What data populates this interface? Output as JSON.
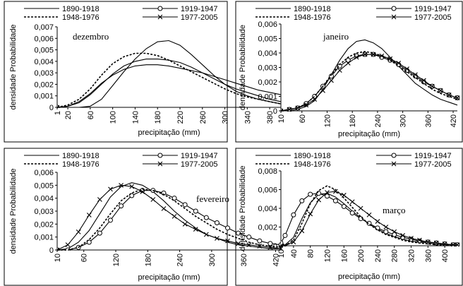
{
  "series_styles": [
    {
      "name": "1890-1918",
      "dash": "",
      "marker": "none"
    },
    {
      "name": "1919-1947",
      "dash": "",
      "marker": "circle"
    },
    {
      "name": "1948-1976",
      "dash": "3,2",
      "marker": "none"
    },
    {
      "name": "1977-2005",
      "dash": "",
      "marker": "x"
    }
  ],
  "chart_data": [
    {
      "type": "line",
      "title": "dezembro",
      "xlabel": "precipitação (mm)",
      "ylabel": "densidade Probabilidade",
      "xlim": [
        1,
        400
      ],
      "ylim": [
        0,
        0.007
      ],
      "xticks": [
        1,
        20,
        60,
        100,
        140,
        180,
        220,
        260,
        300,
        340,
        380
      ],
      "xtick_labels": [
        "1",
        "20",
        "60",
        "100",
        "140",
        "180",
        "220",
        "260",
        "300",
        "340",
        "380"
      ],
      "yticks": [
        0,
        0.001,
        0.002,
        0.003,
        0.004,
        0.005,
        0.006,
        0.007
      ],
      "ytick_labels": [
        "0",
        "0,001",
        "0,002",
        "0,003",
        "0,004",
        "0,005",
        "0,006",
        "0,007"
      ],
      "marker_step": 20,
      "series": [
        {
          "name": "1890-1918",
          "x": [
            1,
            20,
            40,
            60,
            80,
            100,
            120,
            140,
            160,
            180,
            200,
            220,
            240,
            260,
            280,
            300,
            320,
            340,
            360,
            380,
            400
          ],
          "values": [
            0,
            0.0001,
            0.0004,
            0.0011,
            0.002,
            0.0029,
            0.0036,
            0.004,
            0.0042,
            0.0042,
            0.0041,
            0.0039,
            0.0035,
            0.003,
            0.0025,
            0.002,
            0.0016,
            0.0013,
            0.001,
            0.0007,
            0.0005
          ]
        },
        {
          "name": "1919-1947",
          "x": [
            1,
            20,
            40,
            60,
            80,
            100,
            120,
            140,
            160,
            180,
            200,
            220,
            240,
            260,
            280,
            300,
            320,
            340,
            360,
            380,
            400
          ],
          "values": [
            0,
            0.0001,
            0.0005,
            0.0012,
            0.0021,
            0.0028,
            0.0033,
            0.0036,
            0.0037,
            0.0037,
            0.0036,
            0.0034,
            0.0032,
            0.003,
            0.0027,
            0.0024,
            0.0021,
            0.0018,
            0.0015,
            0.0013,
            0.0011
          ]
        },
        {
          "name": "1948-1976",
          "x": [
            1,
            20,
            40,
            60,
            80,
            100,
            120,
            140,
            160,
            180,
            200,
            220,
            240,
            260,
            280,
            300,
            320,
            340,
            360,
            380,
            400
          ],
          "values": [
            0,
            0.0002,
            0.0007,
            0.0016,
            0.0028,
            0.0038,
            0.0044,
            0.0047,
            0.0047,
            0.0045,
            0.0041,
            0.0036,
            0.0031,
            0.0026,
            0.0021,
            0.0016,
            0.0012,
            0.0009,
            0.0007,
            0.0005,
            0.0003
          ]
        },
        {
          "name": "1977-2005",
          "x": [
            1,
            20,
            40,
            60,
            80,
            100,
            120,
            140,
            160,
            180,
            200,
            220,
            240,
            260,
            280,
            300,
            320,
            340,
            360,
            380,
            400
          ],
          "values": [
            0,
            0,
            0,
            0.0001,
            0.0007,
            0.0019,
            0.0031,
            0.0042,
            0.0051,
            0.0057,
            0.0058,
            0.0054,
            0.0046,
            0.0037,
            0.0028,
            0.002,
            0.0014,
            0.001,
            0.0007,
            0.0005,
            0.0003
          ]
        }
      ]
    },
    {
      "type": "line",
      "title": "janeiro",
      "xlabel": "precipitação (mm)",
      "ylabel": "densidade Probabilidade",
      "xlim": [
        10,
        430
      ],
      "ylim": [
        0,
        0.006
      ],
      "xticks": [
        10,
        60,
        120,
        180,
        240,
        300,
        360,
        420
      ],
      "xtick_labels": [
        "10",
        "60",
        "120",
        "180",
        "240",
        "300",
        "360",
        "420"
      ],
      "yticks": [
        0,
        0.001,
        0.002,
        0.003,
        0.004,
        0.005,
        0.006
      ],
      "ytick_labels": [
        "0",
        "0,001",
        "0,002",
        "0,003",
        "0,004",
        "0,005",
        "0,006"
      ],
      "marker_step": 20,
      "series": [
        {
          "name": "1890-1918",
          "x": [
            10,
            30,
            50,
            70,
            90,
            110,
            130,
            150,
            170,
            190,
            210,
            230,
            250,
            270,
            290,
            310,
            330,
            350,
            370,
            390,
            410,
            430
          ],
          "values": [
            0,
            0,
            0.0001,
            0.0003,
            0.0007,
            0.0015,
            0.0025,
            0.0035,
            0.0043,
            0.0048,
            0.0049,
            0.0047,
            0.0043,
            0.0037,
            0.0031,
            0.0025,
            0.0019,
            0.0015,
            0.0011,
            0.0008,
            0.0006,
            0.0004
          ]
        },
        {
          "name": "1919-1947",
          "x": [
            10,
            30,
            50,
            70,
            90,
            110,
            130,
            150,
            170,
            190,
            210,
            230,
            250,
            270,
            290,
            310,
            330,
            350,
            370,
            390,
            410,
            430
          ],
          "values": [
            0,
            0.0001,
            0.0002,
            0.0005,
            0.001,
            0.0017,
            0.0024,
            0.0031,
            0.0035,
            0.0038,
            0.0039,
            0.0039,
            0.0037,
            0.0035,
            0.0032,
            0.0028,
            0.0024,
            0.002,
            0.0017,
            0.0014,
            0.0011,
            0.0009
          ]
        },
        {
          "name": "1948-1976",
          "x": [
            10,
            30,
            50,
            70,
            90,
            110,
            130,
            150,
            170,
            190,
            210,
            230,
            250,
            270,
            290,
            310,
            330,
            350,
            370,
            390,
            410,
            430
          ],
          "values": [
            0,
            0.0001,
            0.0002,
            0.0005,
            0.001,
            0.0017,
            0.0025,
            0.0032,
            0.0037,
            0.004,
            0.0041,
            0.004,
            0.0038,
            0.0035,
            0.0031,
            0.0027,
            0.0023,
            0.0019,
            0.0015,
            0.0012,
            0.001,
            0.0008
          ]
        },
        {
          "name": "1977-2005",
          "x": [
            10,
            30,
            50,
            70,
            90,
            110,
            130,
            150,
            170,
            190,
            210,
            230,
            250,
            270,
            290,
            310,
            330,
            350,
            370,
            390,
            410,
            430
          ],
          "values": [
            0,
            0.0001,
            0.0002,
            0.0004,
            0.0008,
            0.0014,
            0.0021,
            0.0028,
            0.0033,
            0.0037,
            0.0039,
            0.0039,
            0.0038,
            0.0036,
            0.0033,
            0.0029,
            0.0025,
            0.0021,
            0.0017,
            0.0014,
            0.0011,
            0.0009
          ]
        }
      ]
    },
    {
      "type": "line",
      "title": "fevereiro",
      "xlabel": "precipitação (mm)",
      "ylabel": "densidade Probabilidade",
      "xlim": [
        10,
        430
      ],
      "ylim": [
        0,
        0.006
      ],
      "xticks": [
        10,
        60,
        120,
        180,
        240,
        300,
        360,
        420
      ],
      "xtick_labels": [
        "10",
        "60",
        "120",
        "180",
        "240",
        "300",
        "360",
        "420"
      ],
      "yticks": [
        0,
        0.001,
        0.002,
        0.003,
        0.004,
        0.005,
        0.006
      ],
      "ytick_labels": [
        "0",
        "0,001",
        "0,002",
        "0,003",
        "0,004",
        "0,005",
        "0,006"
      ],
      "marker_step": 20,
      "series": [
        {
          "name": "1890-1918",
          "x": [
            10,
            30,
            50,
            70,
            90,
            110,
            130,
            150,
            170,
            190,
            210,
            230,
            250,
            270,
            290,
            310,
            330,
            350,
            370,
            390,
            410,
            430
          ],
          "values": [
            0,
            0.0001,
            0.0006,
            0.0015,
            0.0028,
            0.0041,
            0.0049,
            0.0052,
            0.005,
            0.0045,
            0.0038,
            0.003,
            0.0023,
            0.0017,
            0.0012,
            0.0009,
            0.0006,
            0.0004,
            0.0003,
            0.0002,
            0.0001,
            0.0001
          ]
        },
        {
          "name": "1919-1947",
          "x": [
            10,
            30,
            50,
            70,
            90,
            110,
            130,
            150,
            170,
            190,
            210,
            230,
            250,
            270,
            290,
            310,
            330,
            350,
            370,
            390,
            410,
            430
          ],
          "values": [
            0,
            0,
            0.0002,
            0.0006,
            0.0013,
            0.0023,
            0.0034,
            0.0042,
            0.0046,
            0.0046,
            0.0044,
            0.004,
            0.0035,
            0.003,
            0.0025,
            0.0021,
            0.0017,
            0.0013,
            0.001,
            0.0007,
            0.0005,
            0.0004
          ]
        },
        {
          "name": "1948-1976",
          "x": [
            10,
            30,
            50,
            70,
            90,
            110,
            130,
            150,
            170,
            190,
            210,
            230,
            250,
            270,
            290,
            310,
            330,
            350,
            370,
            390,
            410,
            430
          ],
          "values": [
            0,
            0,
            0.0002,
            0.0008,
            0.0017,
            0.0028,
            0.0038,
            0.0044,
            0.0047,
            0.0046,
            0.0043,
            0.0038,
            0.0032,
            0.0026,
            0.0021,
            0.0016,
            0.0012,
            0.0009,
            0.0006,
            0.0004,
            0.0003,
            0.0002
          ]
        },
        {
          "name": "1977-2005",
          "x": [
            10,
            30,
            50,
            70,
            90,
            110,
            130,
            150,
            170,
            190,
            210,
            230,
            250,
            270,
            290,
            310,
            330,
            350,
            370,
            390,
            410,
            430
          ],
          "values": [
            0,
            0.0004,
            0.0014,
            0.0027,
            0.0039,
            0.0047,
            0.005,
            0.0049,
            0.0045,
            0.0039,
            0.0032,
            0.0026,
            0.002,
            0.0016,
            0.0012,
            0.0009,
            0.0007,
            0.0005,
            0.0004,
            0.0003,
            0.0002,
            0.0001
          ]
        }
      ]
    },
    {
      "type": "line",
      "title": "março",
      "xlabel": "precipitação (mm)",
      "ylabel": "densidade Probabilidade",
      "xlim": [
        10,
        430
      ],
      "ylim": [
        0,
        0.008
      ],
      "xticks": [
        10,
        40,
        80,
        120,
        160,
        200,
        240,
        280,
        320,
        360,
        400
      ],
      "xtick_labels": [
        "10",
        "40",
        "80",
        "120",
        "160",
        "200",
        "240",
        "280",
        "320",
        "360",
        "400"
      ],
      "yticks": [
        0,
        0.002,
        0.004,
        0.006,
        0.008
      ],
      "ytick_labels": [
        "0",
        "0,002",
        "0,004",
        "0,006",
        "0,008"
      ],
      "marker_step": 10,
      "series": [
        {
          "name": "1890-1918",
          "x": [
            10,
            20,
            40,
            60,
            80,
            100,
            120,
            140,
            160,
            180,
            200,
            220,
            240,
            260,
            280,
            300,
            320,
            340,
            360,
            380,
            400,
            420,
            430
          ],
          "values": [
            0,
            0.0001,
            0.0009,
            0.0029,
            0.0046,
            0.0055,
            0.0056,
            0.0052,
            0.0045,
            0.0037,
            0.003,
            0.0023,
            0.0018,
            0.0013,
            0.001,
            0.0007,
            0.0005,
            0.0004,
            0.0003,
            0.0002,
            0.0001,
            0.0001,
            0
          ]
        },
        {
          "name": "1919-1947",
          "x": [
            10,
            20,
            40,
            60,
            80,
            100,
            120,
            140,
            160,
            180,
            200,
            220,
            240,
            260,
            280,
            300,
            320,
            340,
            360,
            380,
            400,
            420,
            430
          ],
          "values": [
            0.0003,
            0.0011,
            0.0033,
            0.0048,
            0.0055,
            0.0056,
            0.0053,
            0.0048,
            0.0042,
            0.0035,
            0.0029,
            0.0024,
            0.0019,
            0.0015,
            0.0012,
            0.0009,
            0.0007,
            0.0005,
            0.0004,
            0.0003,
            0.0002,
            0.0001,
            0.0001
          ]
        },
        {
          "name": "1948-1976",
          "x": [
            10,
            20,
            40,
            60,
            80,
            100,
            120,
            140,
            160,
            180,
            200,
            220,
            240,
            260,
            280,
            300,
            320,
            340,
            360,
            380,
            400,
            420,
            430
          ],
          "values": [
            0,
            0,
            0.0006,
            0.0024,
            0.0045,
            0.0059,
            0.0064,
            0.006,
            0.0051,
            0.0041,
            0.0031,
            0.0023,
            0.0017,
            0.0012,
            0.0009,
            0.0006,
            0.0004,
            0.0003,
            0.0002,
            0.0001,
            0.0001,
            0,
            0
          ]
        },
        {
          "name": "1977-2005",
          "x": [
            10,
            20,
            40,
            60,
            80,
            100,
            120,
            140,
            160,
            180,
            200,
            220,
            240,
            260,
            280,
            300,
            320,
            340,
            360,
            380,
            400,
            420,
            430
          ],
          "values": [
            0,
            0,
            0.0004,
            0.0016,
            0.0034,
            0.0049,
            0.0057,
            0.0058,
            0.0054,
            0.0047,
            0.004,
            0.0033,
            0.0026,
            0.002,
            0.0015,
            0.0011,
            0.0008,
            0.0006,
            0.0004,
            0.0003,
            0.0002,
            0.0001,
            0.0001
          ]
        }
      ]
    }
  ]
}
